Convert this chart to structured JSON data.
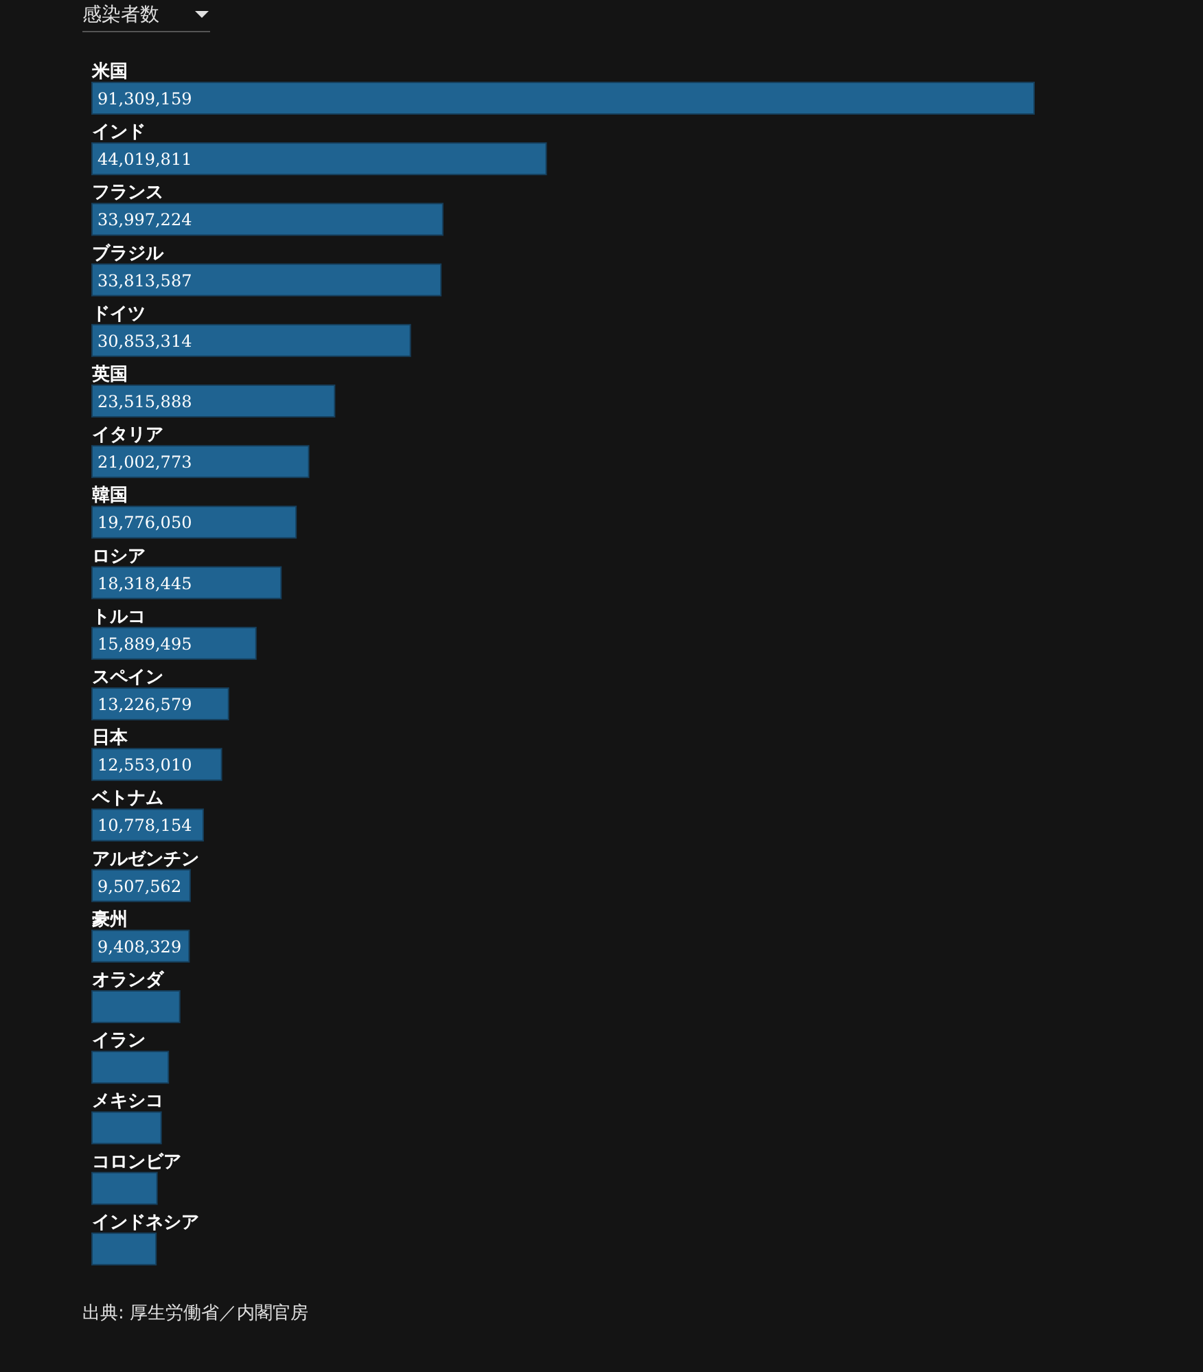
{
  "chart_data": {
    "type": "bar",
    "orientation": "horizontal",
    "title": "感染者数",
    "categories": [
      "米国",
      "インド",
      "フランス",
      "ブラジル",
      "ドイツ",
      "英国",
      "イタリア",
      "韓国",
      "ロシア",
      "トルコ",
      "スペイン",
      "日本",
      "ベトナム",
      "アルゼンチン",
      "豪州",
      "オランダ",
      "イラン",
      "メキシコ",
      "コロンビア",
      "インドネシア"
    ],
    "values": [
      91309159,
      44019811,
      33997224,
      33813587,
      30853314,
      23515888,
      21002773,
      19776050,
      18318445,
      15889495,
      13226579,
      12553010,
      10778154,
      9507562,
      9408329,
      8500000,
      7400000,
      6700000,
      6300000,
      6200000
    ],
    "value_labels": [
      "91,309,159",
      "44,019,811",
      "33,997,224",
      "33,813,587",
      "30,853,314",
      "23,515,888",
      "21,002,773",
      "19,776,050",
      "18,318,445",
      "15,889,495",
      "13,226,579",
      "12,553,010",
      "10,778,154",
      "9,507,562",
      "9,408,329",
      null,
      null,
      null,
      null,
      null
    ],
    "color": "#1f6391",
    "annotations": [
      "出典: 厚生労働省／内閣官房"
    ]
  }
}
